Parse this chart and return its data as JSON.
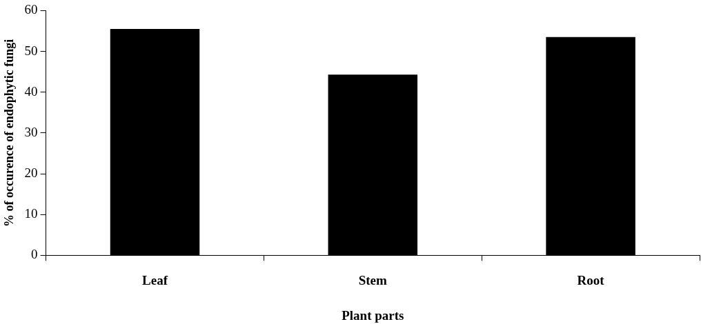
{
  "chart_data": {
    "type": "bar",
    "categories": [
      "Leaf",
      "Stem",
      "Root"
    ],
    "values": [
      55.5,
      44.3,
      53.5
    ],
    "color": "#000000",
    "xlabel": "Plant parts",
    "ylabel": "% of occurence of endophytic fungi",
    "ylim": [
      0,
      60
    ],
    "yticks": [
      0,
      10,
      20,
      30,
      40,
      50,
      60
    ],
    "grid": false,
    "legend": false
  }
}
